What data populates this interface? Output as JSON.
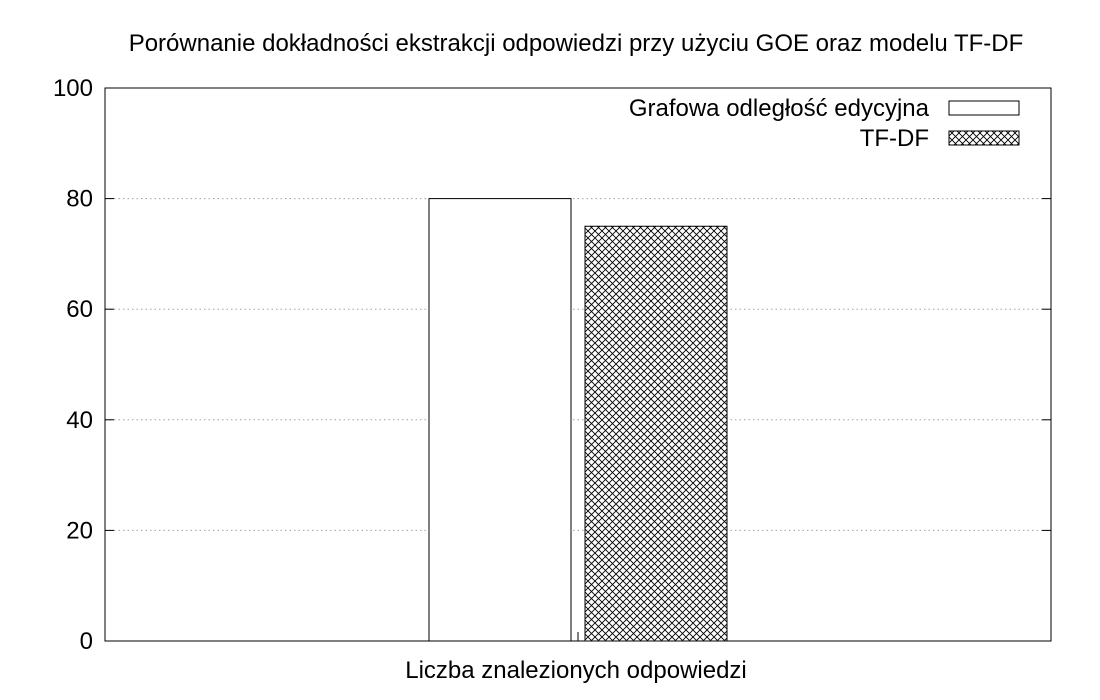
{
  "chart_data": {
    "type": "bar",
    "title": "Porównanie dokładności ekstrakcji odpowiedzi przy użyciu GOE oraz modelu TF-DF",
    "xlabel": "Liczba znalezionych odpowiedzi",
    "ylabel": "",
    "ylim": [
      0,
      100
    ],
    "yticks": [
      "0",
      "20",
      "40",
      "60",
      "80",
      "100"
    ],
    "grid": "horizontal dotted",
    "legend_position": "top-right",
    "series": [
      {
        "name": "Grafowa odległość edycyjna",
        "values": [
          80
        ],
        "fill": "#ffffff",
        "pattern": "none"
      },
      {
        "name": "TF-DF",
        "values": [
          75
        ],
        "fill": "#ffffff",
        "pattern": "crosshatch"
      }
    ]
  }
}
